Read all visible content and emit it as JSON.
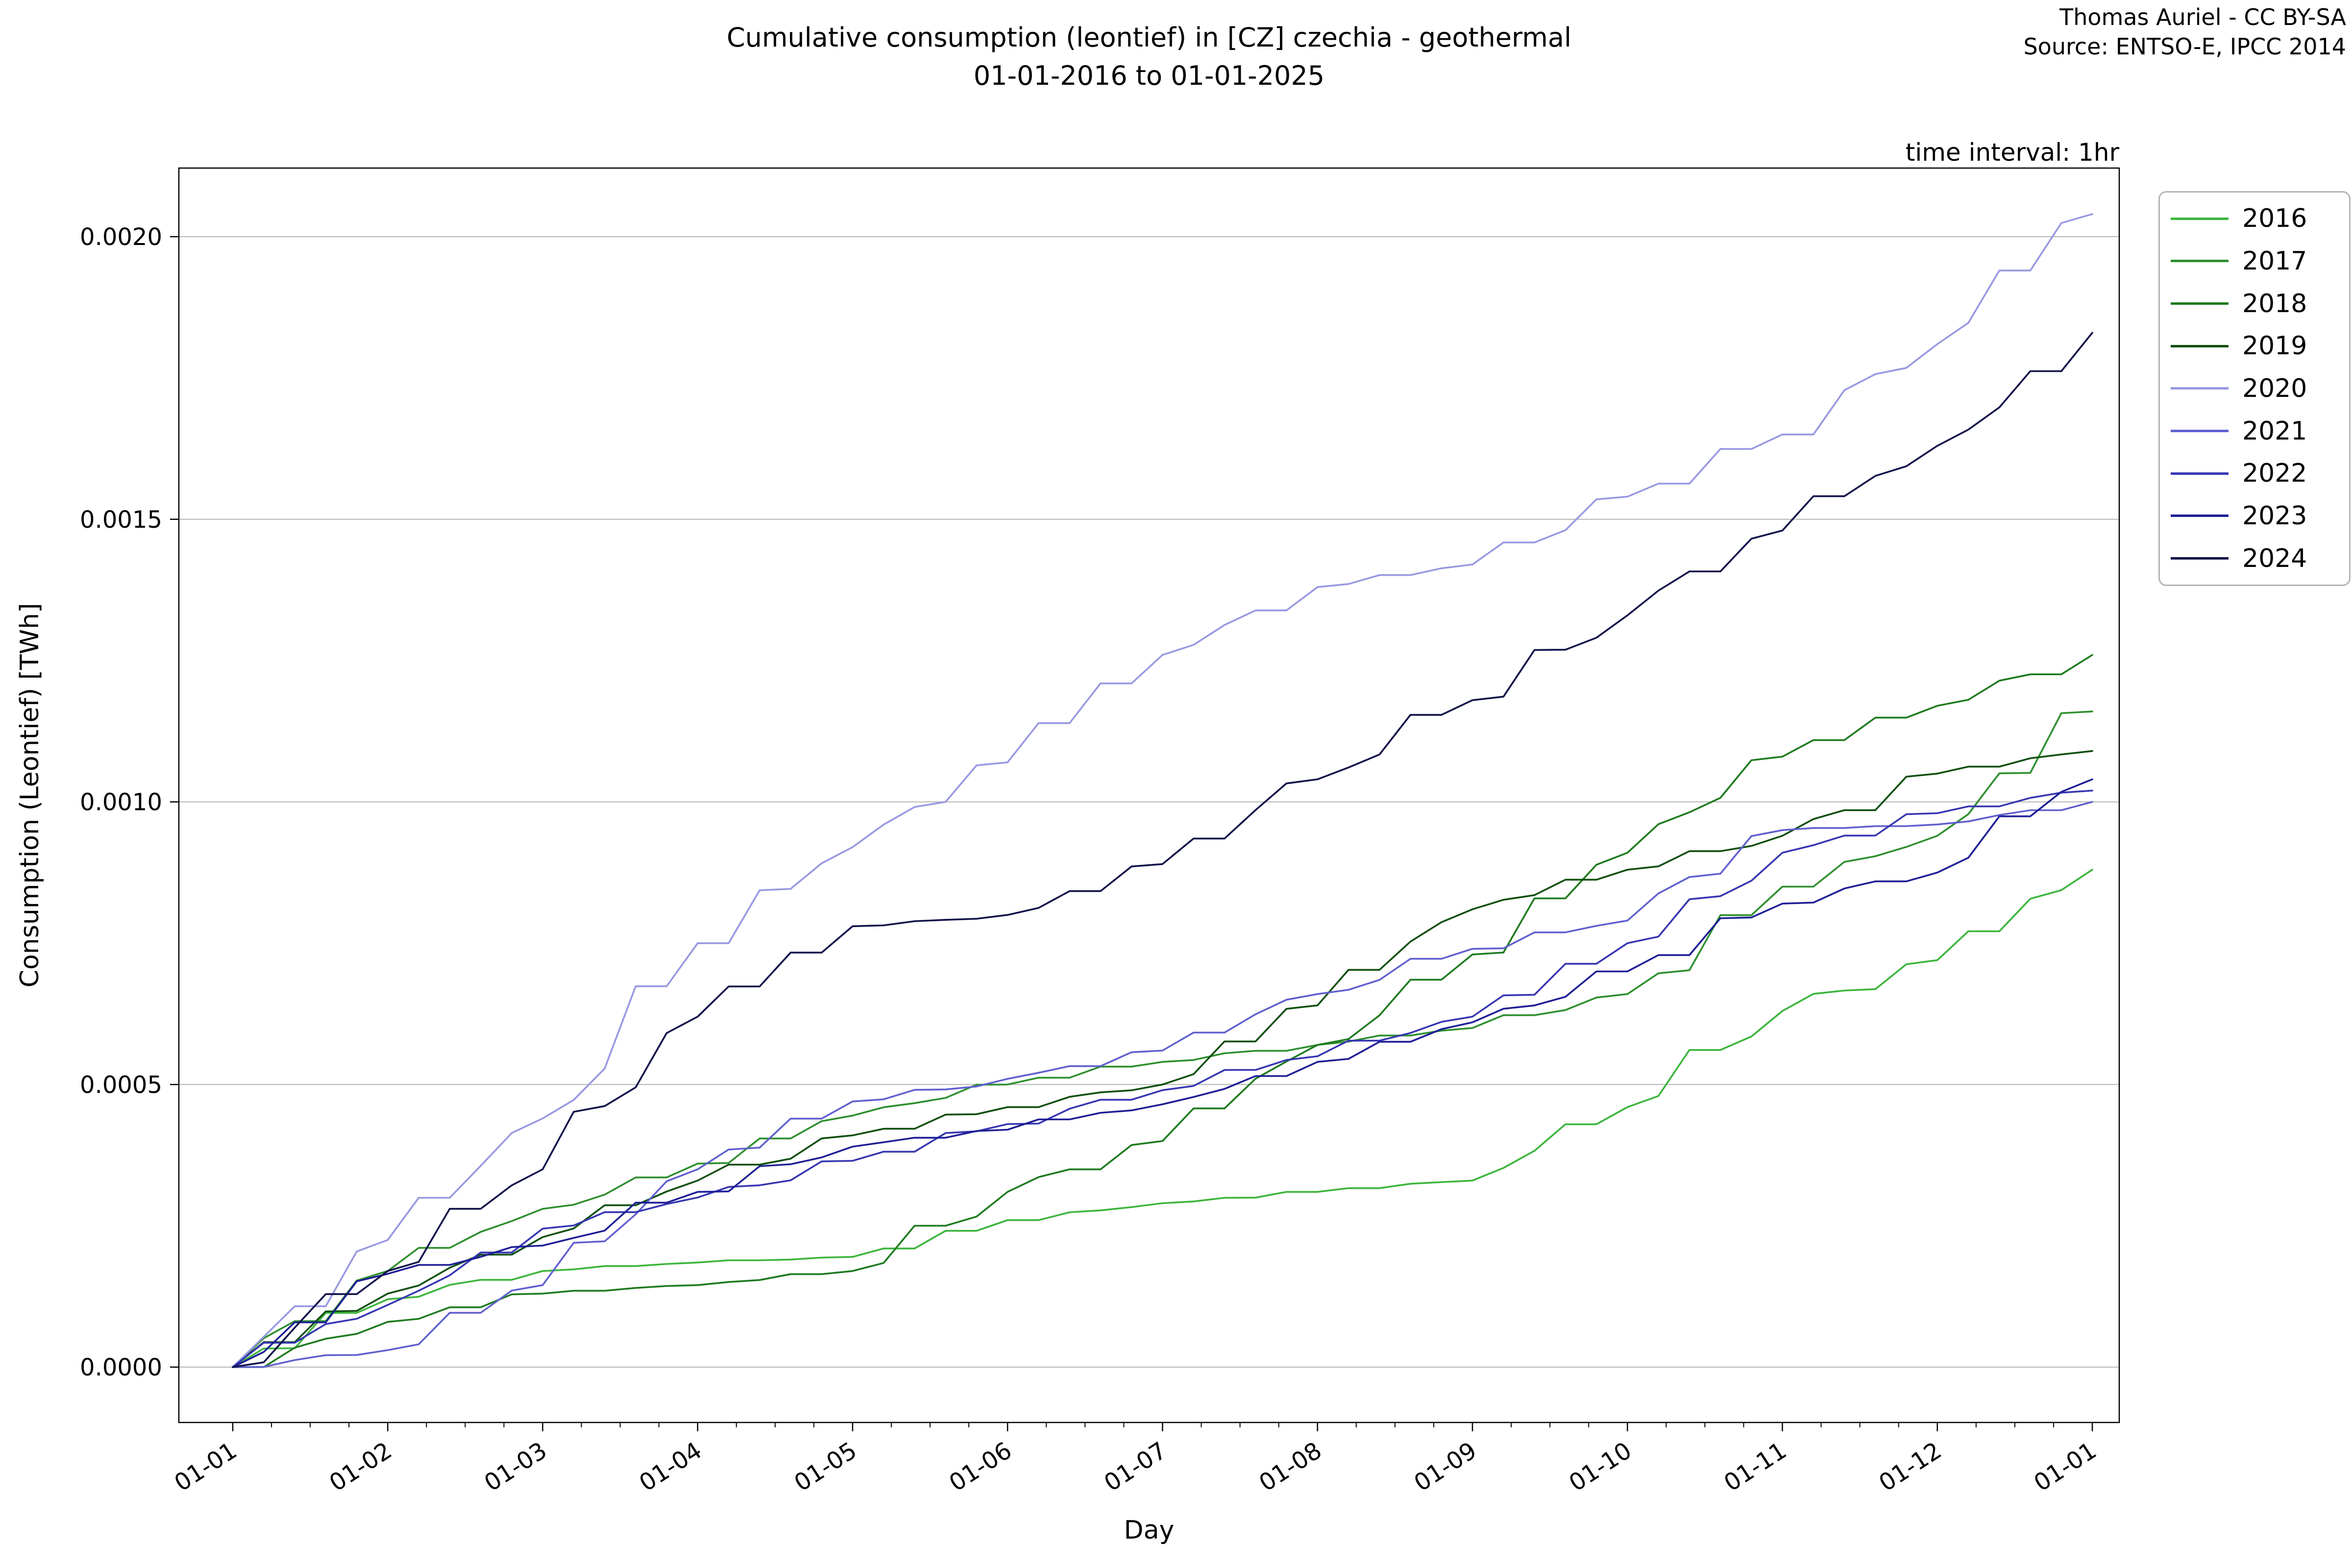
{
  "title": {
    "line1": "Cumulative consumption (leontief) in [CZ] czechia - geothermal",
    "line2": "01-01-2016 to 01-01-2025"
  },
  "attribution": {
    "line1": "Thomas Auriel - CC BY-SA",
    "line2": "Source: ENTSO-E, IPCC 2014"
  },
  "interval_note": "time interval: 1hr",
  "axes": {
    "xlabel": "Day",
    "ylabel": "Consumption (Leontief) [TWh]",
    "ytick_labels": [
      "0.0000",
      "0.0005",
      "0.0010",
      "0.0015",
      "0.0020"
    ],
    "xtick_labels": [
      "01-01",
      "01-02",
      "01-03",
      "01-04",
      "01-05",
      "01-06",
      "01-07",
      "01-08",
      "01-09",
      "01-10",
      "01-11",
      "01-12",
      "01-01"
    ]
  },
  "chart_data": {
    "type": "line",
    "title": "Cumulative consumption (leontief) in [CZ] czechia - geothermal 01-01-2016 to 01-01-2025",
    "xlabel": "Day",
    "ylabel": "Consumption (Leontief) [TWh]",
    "x_categories": [
      "01-01",
      "01-02",
      "01-03",
      "01-04",
      "01-05",
      "01-06",
      "01-07",
      "01-08",
      "01-09",
      "01-10",
      "01-11",
      "01-12",
      "01-01"
    ],
    "ylim": [
      -8e-05,
      0.002122
    ],
    "ytick_values": [
      0.0,
      0.0005,
      0.001,
      0.0015,
      0.002
    ],
    "grid": "horizontal",
    "legend_position": "outside-right",
    "series": [
      {
        "name": "2016",
        "color": "#3cb53c",
        "values": [
          0,
          0.00012,
          0.00017,
          0.000185,
          0.000195,
          0.00026,
          0.00029,
          0.00031,
          0.00033,
          0.00046,
          0.00063,
          0.00072,
          0.00088
        ]
      },
      {
        "name": "2017",
        "color": "#2e8f2e",
        "values": [
          0,
          0.00017,
          0.00028,
          0.00036,
          0.000445,
          0.0005,
          0.00054,
          0.00057,
          0.0006,
          0.00066,
          0.00085,
          0.00094,
          0.00116
        ]
      },
      {
        "name": "2018",
        "color": "#1e7a1e",
        "values": [
          0,
          8e-05,
          0.00013,
          0.000145,
          0.00017,
          0.00031,
          0.0004,
          0.00057,
          0.00073,
          0.00091,
          0.00108,
          0.00117,
          0.00126
        ]
      },
      {
        "name": "2019",
        "color": "#0d4f0d",
        "values": [
          0,
          0.00013,
          0.00023,
          0.00033,
          0.00041,
          0.00046,
          0.0005,
          0.00064,
          0.00081,
          0.00088,
          0.00094,
          0.00105,
          0.00109
        ]
      },
      {
        "name": "2020",
        "color": "#9898e2",
        "values": [
          0,
          0.000225,
          0.00044,
          0.00075,
          0.00092,
          0.00107,
          0.00126,
          0.00138,
          0.00142,
          0.00154,
          0.00165,
          0.00181,
          0.00204
        ]
      },
      {
        "name": "2021",
        "color": "#6060ce",
        "values": [
          0,
          3e-05,
          0.000145,
          0.00035,
          0.00047,
          0.00051,
          0.00056,
          0.00066,
          0.00074,
          0.00079,
          0.00095,
          0.00096,
          0.001
        ]
      },
      {
        "name": "2022",
        "color": "#3636b2",
        "values": [
          0,
          0.00011,
          0.000245,
          0.0003,
          0.000365,
          0.00043,
          0.00049,
          0.00055,
          0.00062,
          0.00075,
          0.00091,
          0.00098,
          0.00102
        ]
      },
      {
        "name": "2023",
        "color": "#1e1e96",
        "values": [
          0,
          0.000165,
          0.000215,
          0.00031,
          0.00039,
          0.00042,
          0.000465,
          0.00054,
          0.00061,
          0.0007,
          0.00082,
          0.000875,
          0.00104
        ]
      },
      {
        "name": "2024",
        "color": "#10104a",
        "values": [
          0,
          0.00017,
          0.00035,
          0.00062,
          0.00078,
          0.0008,
          0.00089,
          0.00104,
          0.00118,
          0.00133,
          0.00148,
          0.00163,
          0.00183
        ]
      }
    ]
  }
}
